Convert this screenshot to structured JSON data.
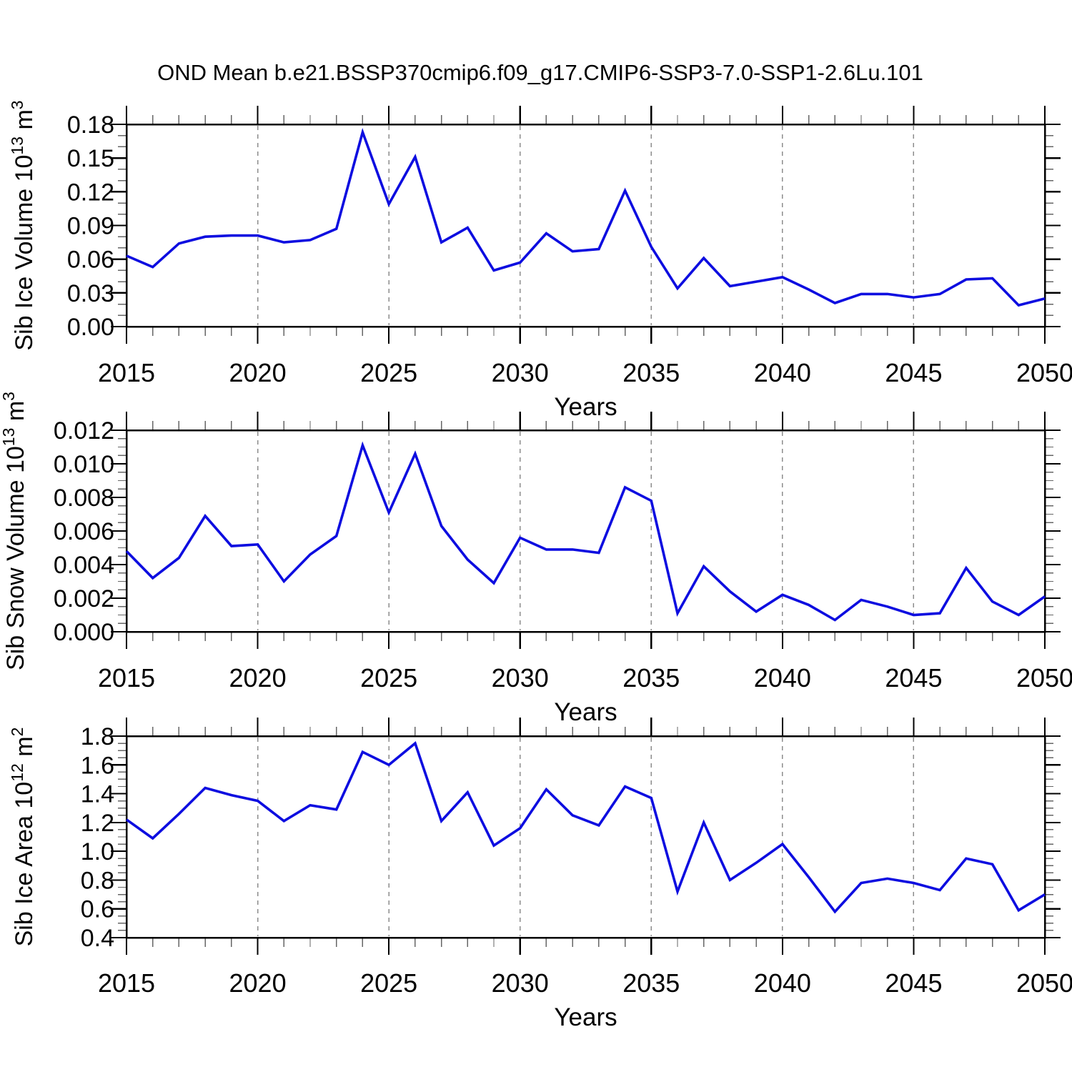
{
  "title": "OND Mean b.e21.BSSP370cmip6.f09_g17.CMIP6-SSP3-7.0-SSP1-2.6Lu.101",
  "line_color": "#0d0de0",
  "grid_color": "#8c8c8c",
  "chart_data": [
    {
      "type": "line",
      "name": "sib-ice-volume",
      "title": "",
      "xlabel": "Years",
      "ylabel_text": "Sib Ice Volume 10^13 m^3",
      "ylabel_parts": [
        {
          "t": "Sib Ice Volume 10"
        },
        {
          "t": "13",
          "sup": true
        },
        {
          "t": " m"
        },
        {
          "t": "3",
          "sup": true
        }
      ],
      "x": [
        2015,
        2016,
        2017,
        2018,
        2019,
        2020,
        2021,
        2022,
        2023,
        2024,
        2025,
        2026,
        2027,
        2028,
        2029,
        2030,
        2031,
        2032,
        2033,
        2034,
        2035,
        2036,
        2037,
        2038,
        2039,
        2040,
        2041,
        2042,
        2043,
        2044,
        2045,
        2046,
        2047,
        2048,
        2049,
        2050
      ],
      "values": [
        0.063,
        0.053,
        0.074,
        0.08,
        0.081,
        0.081,
        0.075,
        0.077,
        0.087,
        0.173,
        0.109,
        0.151,
        0.075,
        0.088,
        0.05,
        0.057,
        0.083,
        0.067,
        0.069,
        0.121,
        0.071,
        0.034,
        0.061,
        0.036,
        0.04,
        0.044,
        0.033,
        0.021,
        0.029,
        0.029,
        0.026,
        0.029,
        0.042,
        0.043,
        0.019,
        0.025
      ],
      "xlim": [
        2015,
        2050
      ],
      "ylim": [
        0.0,
        0.18
      ],
      "xticks": [
        2015,
        2020,
        2025,
        2030,
        2035,
        2040,
        2045,
        2050
      ],
      "xtick_labels": [
        "2015",
        "2020",
        "2025",
        "2030",
        "2035",
        "2040",
        "2045",
        "2050"
      ],
      "xminor_step": 1,
      "yticks": [
        0.0,
        0.03,
        0.06,
        0.09,
        0.12,
        0.15,
        0.18
      ],
      "ytick_labels": [
        "0.00",
        "0.03",
        "0.06",
        "0.09",
        "0.12",
        "0.15",
        "0.18"
      ],
      "yminor_step": 0.01,
      "grid_years": [
        2020,
        2025,
        2030,
        2035,
        2040,
        2045
      ],
      "grid_style": "vertical-dashed",
      "legend": "none"
    },
    {
      "type": "line",
      "name": "sib-snow-volume",
      "title": "",
      "xlabel": "Years",
      "ylabel_text": "Sib Snow Volume 10^13 m^3",
      "ylabel_parts": [
        {
          "t": "Sib Snow Volume 10"
        },
        {
          "t": "13",
          "sup": true
        },
        {
          "t": " m"
        },
        {
          "t": "3",
          "sup": true
        }
      ],
      "x": [
        2015,
        2016,
        2017,
        2018,
        2019,
        2020,
        2021,
        2022,
        2023,
        2024,
        2025,
        2026,
        2027,
        2028,
        2029,
        2030,
        2031,
        2032,
        2033,
        2034,
        2035,
        2036,
        2037,
        2038,
        2039,
        2040,
        2041,
        2042,
        2043,
        2044,
        2045,
        2046,
        2047,
        2048,
        2049,
        2050
      ],
      "values": [
        0.0048,
        0.0032,
        0.0044,
        0.0069,
        0.0051,
        0.0052,
        0.003,
        0.0046,
        0.0057,
        0.0111,
        0.0071,
        0.0106,
        0.0063,
        0.0043,
        0.0029,
        0.0056,
        0.0049,
        0.0049,
        0.0047,
        0.0086,
        0.0078,
        0.0011,
        0.0039,
        0.0024,
        0.0012,
        0.0022,
        0.0016,
        0.0007,
        0.0019,
        0.0015,
        0.001,
        0.0011,
        0.0038,
        0.0018,
        0.001,
        0.0021
      ],
      "xlim": [
        2015,
        2050
      ],
      "ylim": [
        0.0,
        0.012
      ],
      "xticks": [
        2015,
        2020,
        2025,
        2030,
        2035,
        2040,
        2045,
        2050
      ],
      "xtick_labels": [
        "2015",
        "2020",
        "2025",
        "2030",
        "2035",
        "2040",
        "2045",
        "2050"
      ],
      "xminor_step": 1,
      "yticks": [
        0.0,
        0.002,
        0.004,
        0.006,
        0.008,
        0.01,
        0.012
      ],
      "ytick_labels": [
        "0.000",
        "0.002",
        "0.004",
        "0.006",
        "0.008",
        "0.010",
        "0.012"
      ],
      "yminor_step": 0.0005,
      "grid_years": [
        2020,
        2025,
        2030,
        2035,
        2040,
        2045
      ],
      "grid_style": "vertical-dashed",
      "legend": "none"
    },
    {
      "type": "line",
      "name": "sib-ice-area",
      "title": "",
      "xlabel": "Years",
      "ylabel_text": "Sib Ice Area 10^12 m^2",
      "ylabel_parts": [
        {
          "t": "Sib Ice Area 10"
        },
        {
          "t": "12",
          "sup": true
        },
        {
          "t": " m"
        },
        {
          "t": "2",
          "sup": true
        }
      ],
      "x": [
        2015,
        2016,
        2017,
        2018,
        2019,
        2020,
        2021,
        2022,
        2023,
        2024,
        2025,
        2026,
        2027,
        2028,
        2029,
        2030,
        2031,
        2032,
        2033,
        2034,
        2035,
        2036,
        2037,
        2038,
        2039,
        2040,
        2041,
        2042,
        2043,
        2044,
        2045,
        2046,
        2047,
        2048,
        2049,
        2050
      ],
      "values": [
        1.22,
        1.09,
        1.26,
        1.44,
        1.39,
        1.35,
        1.21,
        1.32,
        1.29,
        1.69,
        1.6,
        1.75,
        1.21,
        1.41,
        1.04,
        1.16,
        1.43,
        1.25,
        1.18,
        1.45,
        1.37,
        0.72,
        1.2,
        0.8,
        0.92,
        1.05,
        0.82,
        0.58,
        0.78,
        0.81,
        0.78,
        0.73,
        0.95,
        0.91,
        0.59,
        0.7
      ],
      "xlim": [
        2015,
        2050
      ],
      "ylim": [
        0.4,
        1.8
      ],
      "xticks": [
        2015,
        2020,
        2025,
        2030,
        2035,
        2040,
        2045,
        2050
      ],
      "xtick_labels": [
        "2015",
        "2020",
        "2025",
        "2030",
        "2035",
        "2040",
        "2045",
        "2050"
      ],
      "xminor_step": 1,
      "yticks": [
        0.4,
        0.6,
        0.8,
        1.0,
        1.2,
        1.4,
        1.6,
        1.8
      ],
      "ytick_labels": [
        "0.4",
        "0.6",
        "0.8",
        "1.0",
        "1.2",
        "1.4",
        "1.6",
        "1.8"
      ],
      "yminor_step": 0.05,
      "grid_years": [
        2020,
        2025,
        2030,
        2035,
        2040,
        2045
      ],
      "grid_style": "vertical-dashed",
      "legend": "none"
    }
  ]
}
